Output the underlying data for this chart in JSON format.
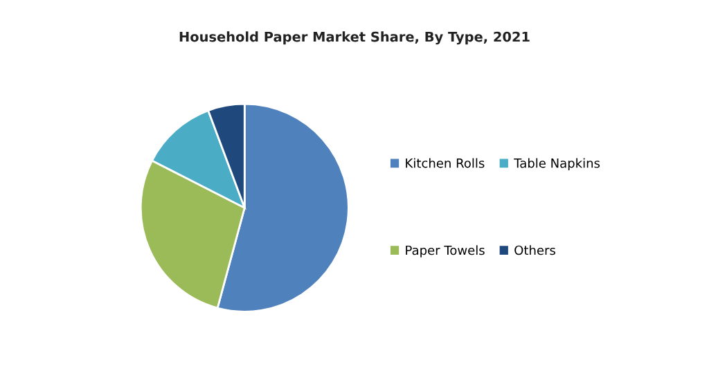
{
  "chart_data": {
    "type": "pie",
    "title": "Household Paper Market Share, By Type, 2021",
    "categories": [
      "Kitchen Rolls",
      "Paper Towels",
      "Table Napkins",
      "Others"
    ],
    "values": [
      54.2,
      28.3,
      11.8,
      5.7
    ],
    "colors": [
      "#4f81bd",
      "#9bbb59",
      "#4bacc6",
      "#1f497d"
    ],
    "legend": "right"
  }
}
